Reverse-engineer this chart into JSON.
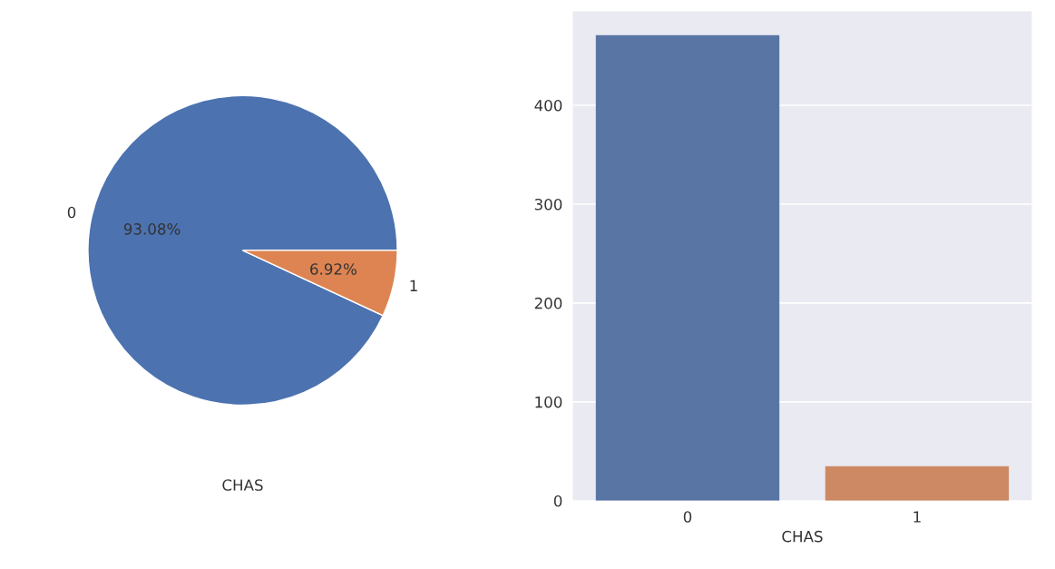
{
  "chart_data": [
    {
      "type": "pie",
      "xlabel": "CHAS",
      "categories": [
        "0",
        "1"
      ],
      "values": [
        93.08,
        6.92
      ],
      "colors": [
        "#4c72b0",
        "#dd8452"
      ],
      "value_labels": [
        "93.08%",
        "6.92%"
      ]
    },
    {
      "type": "bar",
      "xlabel": "CHAS",
      "categories": [
        "0",
        "1"
      ],
      "values": [
        471,
        35
      ],
      "colors": [
        "#5975a4",
        "#cc8963"
      ],
      "ylim": [
        0,
        495
      ],
      "yticks": [
        0,
        100,
        200,
        300,
        400
      ],
      "grid": "y"
    }
  ]
}
